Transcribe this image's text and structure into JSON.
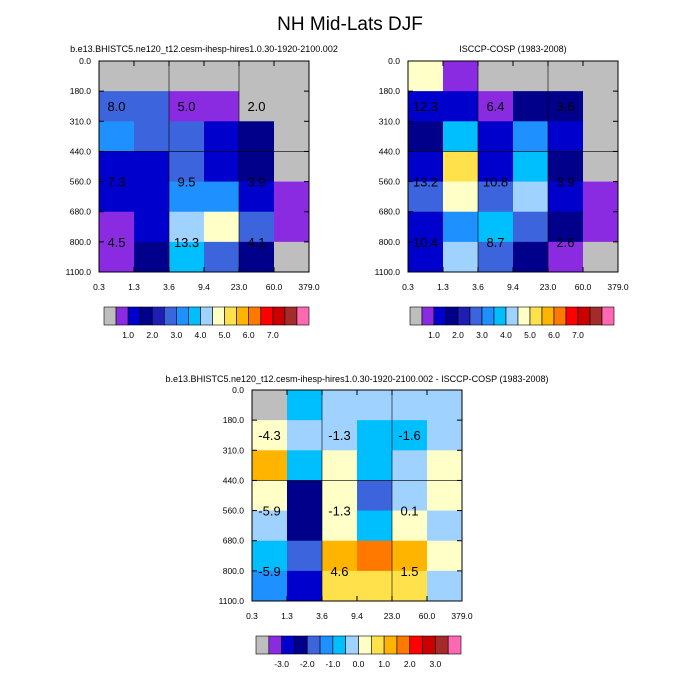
{
  "figure": {
    "title": "NH Mid-Lats DJF"
  },
  "palettes": {
    "abs": [
      "#bebebe",
      "#8a2be2",
      "#0000cd",
      "#00008b",
      "#1e1eb4",
      "#3c64dc",
      "#1e90ff",
      "#00bfff",
      "#a0d2ff",
      "#ffffc8",
      "#ffe14b",
      "#ffb400",
      "#ff7800",
      "#ff0000",
      "#cd0000",
      "#a52a2a",
      "#ff69b4"
    ],
    "diff": [
      "#bebebe",
      "#8a2be2",
      "#0000cd",
      "#00008b",
      "#3c64dc",
      "#1e90ff",
      "#00bfff",
      "#a0d2ff",
      "#ffffc8",
      "#ffe14b",
      "#ffb400",
      "#ff7800",
      "#ff0000",
      "#cd0000",
      "#a52a2a",
      "#ff69b4"
    ]
  },
  "chart_data": [
    {
      "id": "model",
      "type": "heatmap",
      "title": "b.e13.BHISTC5.ne120_t12.cesm-ihesp-hires1.0.30-1920-2100.002",
      "x_ticks": [
        "0.3",
        "1.3",
        "3.6",
        "9.4",
        "23.0",
        "60.0",
        "379.0"
      ],
      "y_ticks": [
        "0.0",
        "180.0",
        "310.0",
        "440.0",
        "560.0",
        "680.0",
        "800.0",
        "1100.0"
      ],
      "cells": [
        [
          "#bebebe",
          "#bebebe",
          "#bebebe",
          "#bebebe",
          "#bebebe",
          "#bebebe"
        ],
        [
          "#3c64dc",
          "#3c64dc",
          "#8a2be2",
          "#8a2be2",
          "#bebebe",
          "#bebebe"
        ],
        [
          "#1e90ff",
          "#3c64dc",
          "#3c64dc",
          "#0000cd",
          "#00008b",
          "#bebebe"
        ],
        [
          "#0000cd",
          "#0000cd",
          "#3c64dc",
          "#0000cd",
          "#00008b",
          "#bebebe"
        ],
        [
          "#0000cd",
          "#0000cd",
          "#1e90ff",
          "#1e90ff",
          "#0000cd",
          "#8a2be2"
        ],
        [
          "#8a2be2",
          "#0000cd",
          "#a0d2ff",
          "#ffffc8",
          "#3c64dc",
          "#8a2be2"
        ],
        [
          "#8a2be2",
          "#00008b",
          "#00bfff",
          "#3c64dc",
          "#00008b",
          "#bebebe"
        ]
      ],
      "annotations": [
        {
          "col": 0.5,
          "row": 1.5,
          "text": "8.0"
        },
        {
          "col": 2.5,
          "row": 1.5,
          "text": "5.0"
        },
        {
          "col": 4.5,
          "row": 1.5,
          "text": "2.0"
        },
        {
          "col": 0.5,
          "row": 4.0,
          "text": "7.3"
        },
        {
          "col": 2.5,
          "row": 4.0,
          "text": "9.5"
        },
        {
          "col": 4.5,
          "row": 4.0,
          "text": "3.9"
        },
        {
          "col": 0.5,
          "row": 6.0,
          "text": "4.5"
        },
        {
          "col": 2.5,
          "row": 6.0,
          "text": "13.3"
        },
        {
          "col": 4.5,
          "row": 6.0,
          "text": "4.1"
        }
      ],
      "colorbar": {
        "palette": "abs",
        "labels": [
          {
            "at": 2,
            "text": "1.0"
          },
          {
            "at": 4,
            "text": "2.0"
          },
          {
            "at": 6,
            "text": "3.0"
          },
          {
            "at": 8,
            "text": "4.0"
          },
          {
            "at": 10,
            "text": "5.0"
          },
          {
            "at": 12,
            "text": "6.0"
          },
          {
            "at": 14,
            "text": "7.0"
          }
        ]
      }
    },
    {
      "id": "obs",
      "type": "heatmap",
      "title": "ISCCP-COSP (1983-2008)",
      "x_ticks": [
        "0.3",
        "1.3",
        "3.6",
        "9.4",
        "23.0",
        "60.0",
        "379.0"
      ],
      "y_ticks": [
        "0.0",
        "180.0",
        "310.0",
        "440.0",
        "560.0",
        "680.0",
        "800.0",
        "1100.0"
      ],
      "cells": [
        [
          "#ffffc8",
          "#8a2be2",
          "#bebebe",
          "#bebebe",
          "#bebebe",
          "#bebebe"
        ],
        [
          "#0000cd",
          "#0000cd",
          "#8a2be2",
          "#00008b",
          "#00008b",
          "#bebebe"
        ],
        [
          "#00008b",
          "#00bfff",
          "#0000cd",
          "#1e90ff",
          "#0000cd",
          "#bebebe"
        ],
        [
          "#0000cd",
          "#ffe14b",
          "#0000cd",
          "#00bfff",
          "#00008b",
          "#bebebe"
        ],
        [
          "#3c64dc",
          "#ffffc8",
          "#3c64dc",
          "#a0d2ff",
          "#0000cd",
          "#8a2be2"
        ],
        [
          "#0000cd",
          "#1e90ff",
          "#00bfff",
          "#3c64dc",
          "#00008b",
          "#8a2be2"
        ],
        [
          "#0000cd",
          "#a0d2ff",
          "#3c64dc",
          "#00008b",
          "#8a2be2",
          "#bebebe"
        ]
      ],
      "annotations": [
        {
          "col": 0.5,
          "row": 1.5,
          "text": "12.3"
        },
        {
          "col": 2.5,
          "row": 1.5,
          "text": "6.4"
        },
        {
          "col": 4.5,
          "row": 1.5,
          "text": "3.6"
        },
        {
          "col": 0.5,
          "row": 4.0,
          "text": "13.2"
        },
        {
          "col": 2.5,
          "row": 4.0,
          "text": "10.8"
        },
        {
          "col": 4.5,
          "row": 4.0,
          "text": "3.9"
        },
        {
          "col": 0.5,
          "row": 6.0,
          "text": "10.4"
        },
        {
          "col": 2.5,
          "row": 6.0,
          "text": "8.7"
        },
        {
          "col": 4.5,
          "row": 6.0,
          "text": "2.6"
        }
      ],
      "colorbar": {
        "palette": "abs",
        "labels": [
          {
            "at": 2,
            "text": "1.0"
          },
          {
            "at": 4,
            "text": "2.0"
          },
          {
            "at": 6,
            "text": "3.0"
          },
          {
            "at": 8,
            "text": "4.0"
          },
          {
            "at": 10,
            "text": "5.0"
          },
          {
            "at": 12,
            "text": "6.0"
          },
          {
            "at": 14,
            "text": "7.0"
          }
        ]
      }
    },
    {
      "id": "diff",
      "type": "heatmap",
      "title": "b.e13.BHISTC5.ne120_t12.cesm-ihesp-hires1.0.30-1920-2100.002 - ISCCP-COSP (1983-2008)",
      "x_ticks": [
        "0.3",
        "1.3",
        "3.6",
        "9.4",
        "23.0",
        "60.0",
        "379.0"
      ],
      "y_ticks": [
        "0.0",
        "180.0",
        "310.0",
        "440.0",
        "560.0",
        "680.0",
        "800.0",
        "1100.0"
      ],
      "cells": [
        [
          "#bebebe",
          "#00bfff",
          "#a0d2ff",
          "#a0d2ff",
          "#a0d2ff",
          "#a0d2ff"
        ],
        [
          "#ffffc8",
          "#a0d2ff",
          "#a0d2ff",
          "#00bfff",
          "#00bfff",
          "#a0d2ff"
        ],
        [
          "#ffb400",
          "#00bfff",
          "#ffffc8",
          "#00bfff",
          "#a0d2ff",
          "#ffffc8"
        ],
        [
          "#ffffc8",
          "#00008b",
          "#ffffc8",
          "#3c64dc",
          "#a0d2ff",
          "#ffffc8"
        ],
        [
          "#a0d2ff",
          "#00008b",
          "#ffffc8",
          "#00bfff",
          "#ffffc8",
          "#a0d2ff"
        ],
        [
          "#00bfff",
          "#3c64dc",
          "#ffb400",
          "#ff7800",
          "#ffb400",
          "#ffffc8"
        ],
        [
          "#1e90ff",
          "#0000cd",
          "#ffe14b",
          "#ffe14b",
          "#ffe14b",
          "#a0d2ff"
        ]
      ],
      "annotations": [
        {
          "col": 0.5,
          "row": 1.5,
          "text": "-4.3"
        },
        {
          "col": 2.5,
          "row": 1.5,
          "text": "-1.3"
        },
        {
          "col": 4.5,
          "row": 1.5,
          "text": "-1.6"
        },
        {
          "col": 0.5,
          "row": 4.0,
          "text": "-5.9"
        },
        {
          "col": 2.5,
          "row": 4.0,
          "text": "-1.3"
        },
        {
          "col": 4.5,
          "row": 4.0,
          "text": "0.1"
        },
        {
          "col": 0.5,
          "row": 6.0,
          "text": "-5.9"
        },
        {
          "col": 2.5,
          "row": 6.0,
          "text": "4.6"
        },
        {
          "col": 4.5,
          "row": 6.0,
          "text": "1.5"
        }
      ],
      "colorbar": {
        "palette": "diff",
        "labels": [
          {
            "at": 2,
            "text": "-3.0"
          },
          {
            "at": 4,
            "text": "-2.0"
          },
          {
            "at": 6,
            "text": "-1.0"
          },
          {
            "at": 8,
            "text": "0.0"
          },
          {
            "at": 10,
            "text": "1.0"
          },
          {
            "at": 12,
            "text": "2.0"
          },
          {
            "at": 14,
            "text": "3.0"
          }
        ]
      }
    }
  ]
}
